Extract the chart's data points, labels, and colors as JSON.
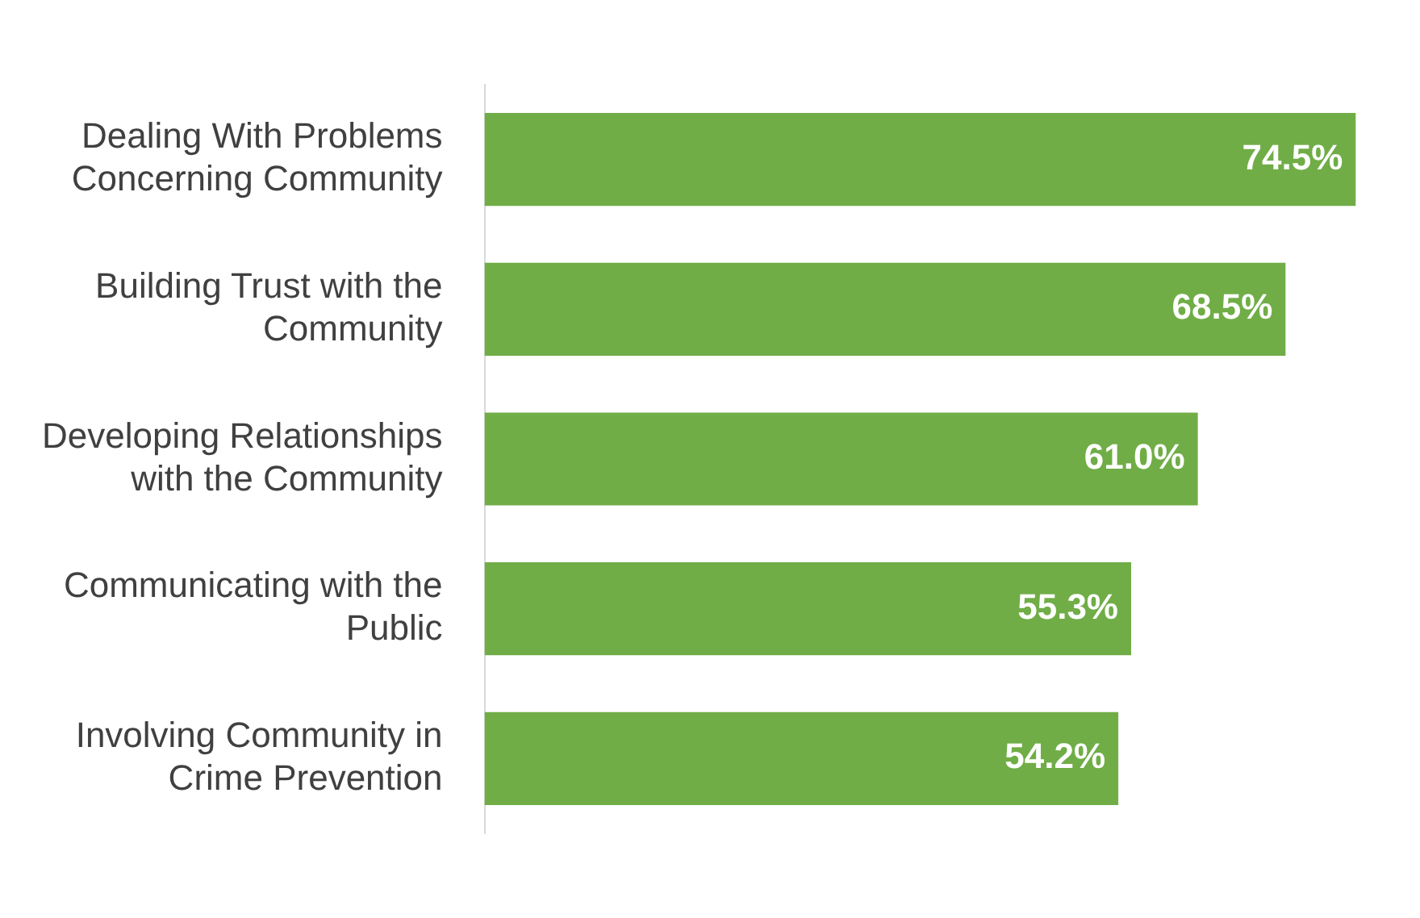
{
  "chart_data": {
    "type": "bar",
    "orientation": "horizontal",
    "categories": [
      "Dealing With Problems Concerning Community",
      "Building Trust with the Community",
      "Developing Relationships with the Community",
      "Communicating with the Public",
      "Involving Community in Crime Prevention"
    ],
    "values": [
      74.5,
      68.5,
      61.0,
      55.3,
      54.2
    ],
    "value_labels": [
      "74.5%",
      "68.5%",
      "61.0%",
      "55.3%",
      "54.2%"
    ],
    "color": "#70ad47",
    "grid": false,
    "legend": false,
    "tick_labels": "y"
  }
}
